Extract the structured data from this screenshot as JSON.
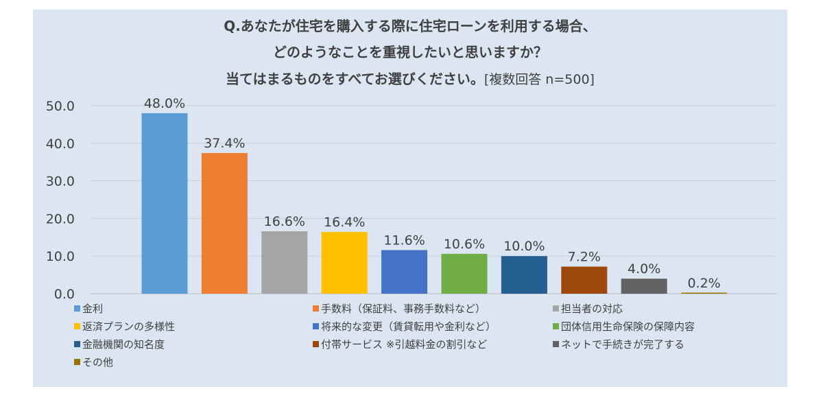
{
  "title": {
    "line1": "Q.あなたが住宅を購入する際に住宅ローンを利用する場合、",
    "line2": "どのようなことを重視したいと思いますか？",
    "line3": "当てはまるものをすべてお選びください。",
    "note": "[複数回答 n=500]"
  },
  "chart_data": {
    "type": "bar",
    "ylim": [
      0,
      50
    ],
    "y_ticks": [
      "0.0",
      "10.0",
      "20.0",
      "30.0",
      "40.0",
      "50.0"
    ],
    "grid": true,
    "legend_position": "bottom",
    "categories": [
      "金利",
      "手数料（保証料、事務手数料など）",
      "担当者の対応",
      "返済プランの多様性",
      "将来的な変更（賃貸転用や金利など）",
      "団体信用生命保険の保障内容",
      "金融機関の知名度",
      "付帯サービス ※引越料金の割引など",
      "ネットで手続きが完了する",
      "その他"
    ],
    "values": [
      48.0,
      37.4,
      16.6,
      16.4,
      11.6,
      10.6,
      10.0,
      7.2,
      4.0,
      0.2
    ],
    "data_labels": [
      "48.0%",
      "37.4%",
      "16.6%",
      "16.4%",
      "11.6%",
      "10.6%",
      "10.0%",
      "7.2%",
      "4.0%",
      "0.2%"
    ],
    "colors": [
      "#5b9bd5",
      "#ed7d31",
      "#a5a5a5",
      "#ffc000",
      "#4472c4",
      "#70ad47",
      "#255e91",
      "#9e480e",
      "#636363",
      "#997300"
    ]
  }
}
